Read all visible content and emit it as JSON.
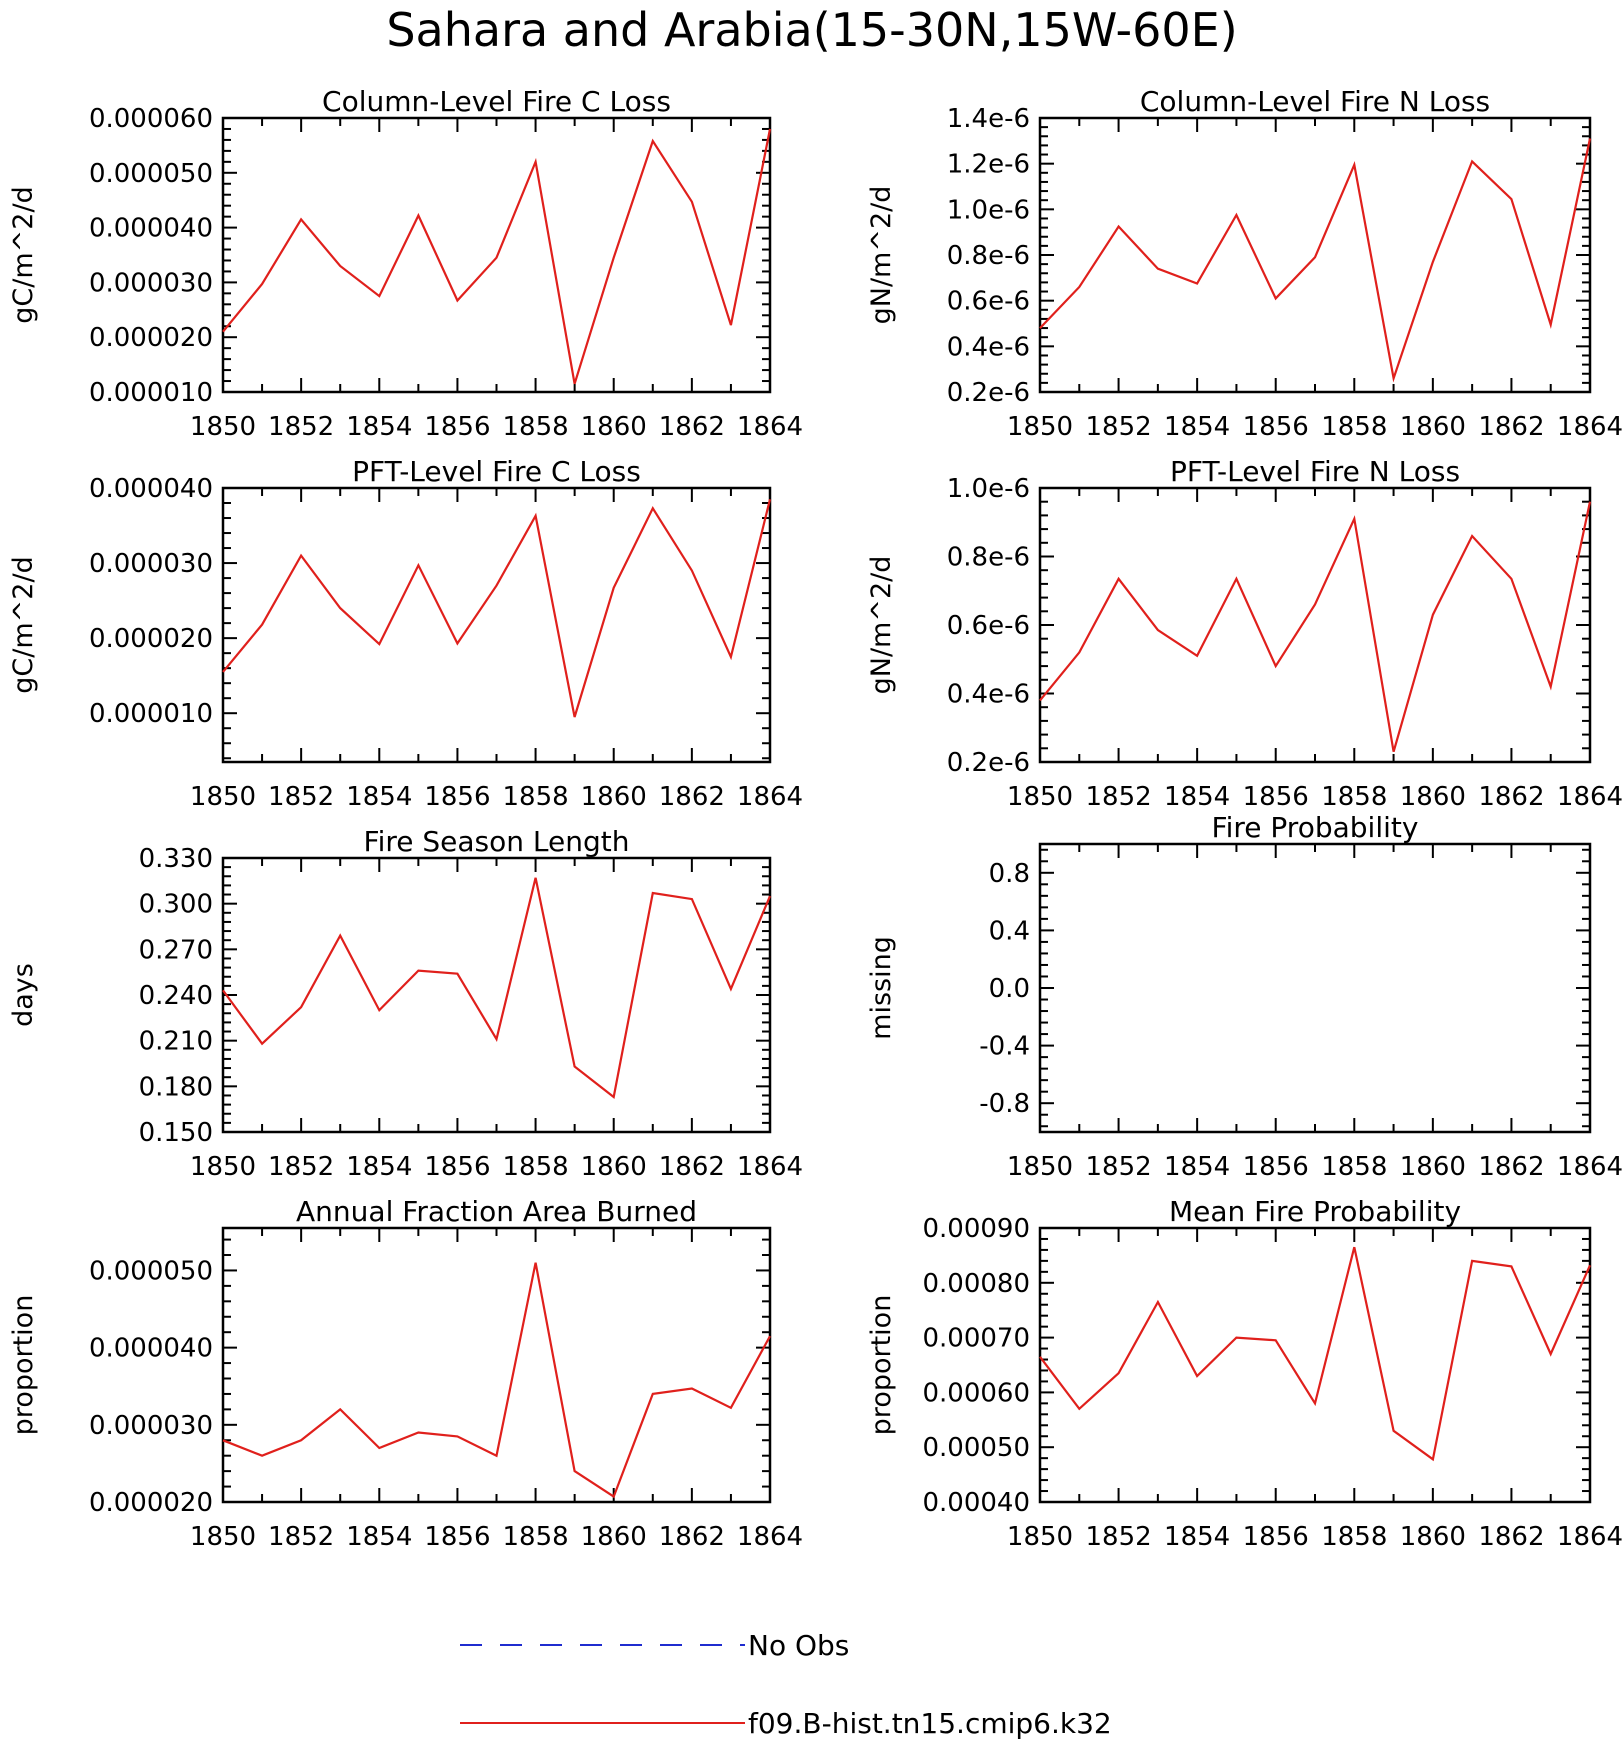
{
  "title": "Sahara and Arabia(15-30N,15W-60E)",
  "legend": {
    "entries": [
      {
        "label": "No Obs",
        "color": "#1f2ccf",
        "style": "dashed"
      },
      {
        "label": "f09.B-hist.tn15.cmip6.k32",
        "color": "#e0201c",
        "style": "solid"
      }
    ]
  },
  "chart_data": [
    {
      "type": "line",
      "title": "Column-Level Fire C Loss",
      "ylabel": "gC/m^2/d",
      "x": [
        1850,
        1851,
        1852,
        1853,
        1854,
        1855,
        1856,
        1857,
        1858,
        1859,
        1860,
        1861,
        1862,
        1863,
        1864
      ],
      "xlim": [
        1850,
        1864
      ],
      "xticks": [
        "1850",
        "1852",
        "1854",
        "1856",
        "1858",
        "1860",
        "1862",
        "1864"
      ],
      "ylim": [
        1e-05,
        6e-05
      ],
      "yticks": [
        "0.000060",
        "0.000050",
        "0.000040",
        "0.000030",
        "0.000020",
        "0.000010"
      ],
      "ytick_values": [
        6e-05,
        5e-05,
        4e-05,
        3e-05,
        2e-05,
        1e-05
      ],
      "series": [
        {
          "color": "#e0201c",
          "values": [
            2.1e-05,
            2.97e-05,
            4.15e-05,
            3.3e-05,
            2.75e-05,
            4.22e-05,
            2.67e-05,
            3.45e-05,
            5.2e-05,
            1.15e-05,
            3.45e-05,
            5.58e-05,
            4.47e-05,
            2.22e-05,
            5.8e-05
          ]
        }
      ]
    },
    {
      "type": "line",
      "title": "Column-Level Fire N Loss",
      "ylabel": "gN/m^2/d",
      "x": [
        1850,
        1851,
        1852,
        1853,
        1854,
        1855,
        1856,
        1857,
        1858,
        1859,
        1860,
        1861,
        1862,
        1863,
        1864
      ],
      "xlim": [
        1850,
        1864
      ],
      "xticks": [
        "1850",
        "1852",
        "1854",
        "1856",
        "1858",
        "1860",
        "1862",
        "1864"
      ],
      "ylim": [
        2e-07,
        1.4e-06
      ],
      "yticks": [
        "1.4e-6",
        "1.2e-6",
        "1.0e-6",
        "0.8e-6",
        "0.6e-6",
        "0.4e-6",
        "0.2e-6"
      ],
      "ytick_values": [
        1.4e-06,
        1.2e-06,
        1e-06,
        8e-07,
        6e-07,
        4e-07,
        2e-07
      ],
      "series": [
        {
          "color": "#e0201c",
          "values": [
            4.8e-07,
            6.6e-07,
            9.25e-07,
            7.4e-07,
            6.75e-07,
            9.75e-07,
            6.1e-07,
            7.9e-07,
            1.195e-06,
            2.6e-07,
            7.7e-07,
            1.21e-06,
            1.045e-06,
            4.95e-07,
            1.31e-06
          ]
        }
      ]
    },
    {
      "type": "line",
      "title": "PFT-Level Fire C Loss",
      "ylabel": "gC/m^2/d",
      "x": [
        1850,
        1851,
        1852,
        1853,
        1854,
        1855,
        1856,
        1857,
        1858,
        1859,
        1860,
        1861,
        1862,
        1863,
        1864
      ],
      "xlim": [
        1850,
        1864
      ],
      "xticks": [
        "1850",
        "1852",
        "1854",
        "1856",
        "1858",
        "1860",
        "1862",
        "1864"
      ],
      "ylim": [
        3.5e-06,
        4e-05
      ],
      "yticks": [
        "0.000040",
        "0.000030",
        "0.000020",
        "0.000010"
      ],
      "ytick_values": [
        4e-05,
        3e-05,
        2e-05,
        1e-05
      ],
      "series": [
        {
          "color": "#e0201c",
          "values": [
            1.55e-05,
            2.18e-05,
            3.1e-05,
            2.4e-05,
            1.92e-05,
            2.97e-05,
            1.93e-05,
            2.7e-05,
            3.63e-05,
            9.5e-06,
            2.67e-05,
            3.73e-05,
            2.9e-05,
            1.75e-05,
            3.85e-05
          ]
        }
      ]
    },
    {
      "type": "line",
      "title": "PFT-Level Fire N Loss",
      "ylabel": "gN/m^2/d",
      "x": [
        1850,
        1851,
        1852,
        1853,
        1854,
        1855,
        1856,
        1857,
        1858,
        1859,
        1860,
        1861,
        1862,
        1863,
        1864
      ],
      "xlim": [
        1850,
        1864
      ],
      "xticks": [
        "1850",
        "1852",
        "1854",
        "1856",
        "1858",
        "1860",
        "1862",
        "1864"
      ],
      "ylim": [
        2e-07,
        1e-06
      ],
      "yticks": [
        "1.0e-6",
        "0.8e-6",
        "0.6e-6",
        "0.4e-6",
        "0.2e-6"
      ],
      "ytick_values": [
        1e-06,
        8e-07,
        6e-07,
        4e-07,
        2e-07
      ],
      "series": [
        {
          "color": "#e0201c",
          "values": [
            3.8e-07,
            5.2e-07,
            7.35e-07,
            5.85e-07,
            5.1e-07,
            7.35e-07,
            4.8e-07,
            6.6e-07,
            9.1e-07,
            2.3e-07,
            6.3e-07,
            8.6e-07,
            7.35e-07,
            4.2e-07,
            9.6e-07
          ]
        }
      ]
    },
    {
      "type": "line",
      "title": "Fire Season Length",
      "ylabel": "days",
      "x": [
        1850,
        1851,
        1852,
        1853,
        1854,
        1855,
        1856,
        1857,
        1858,
        1859,
        1860,
        1861,
        1862,
        1863,
        1864
      ],
      "xlim": [
        1850,
        1864
      ],
      "xticks": [
        "1850",
        "1852",
        "1854",
        "1856",
        "1858",
        "1860",
        "1862",
        "1864"
      ],
      "ylim": [
        0.15,
        0.33
      ],
      "yticks": [
        "0.330",
        "0.300",
        "0.270",
        "0.240",
        "0.210",
        "0.180",
        "0.150"
      ],
      "ytick_values": [
        0.33,
        0.3,
        0.27,
        0.24,
        0.21,
        0.18,
        0.15
      ],
      "series": [
        {
          "color": "#e0201c",
          "values": [
            0.243,
            0.208,
            0.232,
            0.279,
            0.23,
            0.256,
            0.254,
            0.211,
            0.317,
            0.193,
            0.173,
            0.307,
            0.303,
            0.244,
            0.305
          ]
        }
      ]
    },
    {
      "type": "line",
      "title": "Fire Probability",
      "ylabel": "missing",
      "x": [],
      "xlim": [
        1850,
        1864
      ],
      "xticks": [
        "1850",
        "1852",
        "1854",
        "1856",
        "1858",
        "1860",
        "1862",
        "1864"
      ],
      "ylim": [
        -1.0,
        1.0
      ],
      "yticks": [
        "0.8",
        "0.4",
        "0.0",
        "-0.4",
        "-0.8"
      ],
      "ytick_values": [
        0.8,
        0.4,
        0.0,
        -0.4,
        -0.8
      ],
      "series": []
    },
    {
      "type": "line",
      "title": "Annual Fraction Area Burned",
      "ylabel": "proportion",
      "x": [
        1850,
        1851,
        1852,
        1853,
        1854,
        1855,
        1856,
        1857,
        1858,
        1859,
        1860,
        1861,
        1862,
        1863,
        1864
      ],
      "xlim": [
        1850,
        1864
      ],
      "xticks": [
        "1850",
        "1852",
        "1854",
        "1856",
        "1858",
        "1860",
        "1862",
        "1864"
      ],
      "ylim": [
        2e-05,
        5.55e-05
      ],
      "yticks": [
        "0.000050",
        "0.000040",
        "0.000030",
        "0.000020"
      ],
      "ytick_values": [
        5e-05,
        4e-05,
        3e-05,
        2e-05
      ],
      "series": [
        {
          "color": "#e0201c",
          "values": [
            2.8e-05,
            2.6e-05,
            2.8e-05,
            3.2e-05,
            2.7e-05,
            2.9e-05,
            2.85e-05,
            2.6e-05,
            5.1e-05,
            2.4e-05,
            2.07e-05,
            3.4e-05,
            3.47e-05,
            3.22e-05,
            4.15e-05
          ]
        }
      ]
    },
    {
      "type": "line",
      "title": "Mean Fire Probability",
      "ylabel": "proportion",
      "x": [
        1850,
        1851,
        1852,
        1853,
        1854,
        1855,
        1856,
        1857,
        1858,
        1859,
        1860,
        1861,
        1862,
        1863,
        1864
      ],
      "xlim": [
        1850,
        1864
      ],
      "xticks": [
        "1850",
        "1852",
        "1854",
        "1856",
        "1858",
        "1860",
        "1862",
        "1864"
      ],
      "ylim": [
        0.0004,
        0.0009
      ],
      "yticks": [
        "0.00090",
        "0.00080",
        "0.00070",
        "0.00060",
        "0.00050",
        "0.00040"
      ],
      "ytick_values": [
        0.0009,
        0.0008,
        0.0007,
        0.0006,
        0.0005,
        0.0004
      ],
      "series": [
        {
          "color": "#e0201c",
          "values": [
            0.000665,
            0.00057,
            0.000635,
            0.000765,
            0.00063,
            0.0007,
            0.000695,
            0.00058,
            0.000865,
            0.00053,
            0.000478,
            0.00084,
            0.00083,
            0.00067,
            0.000832
          ]
        }
      ]
    }
  ]
}
